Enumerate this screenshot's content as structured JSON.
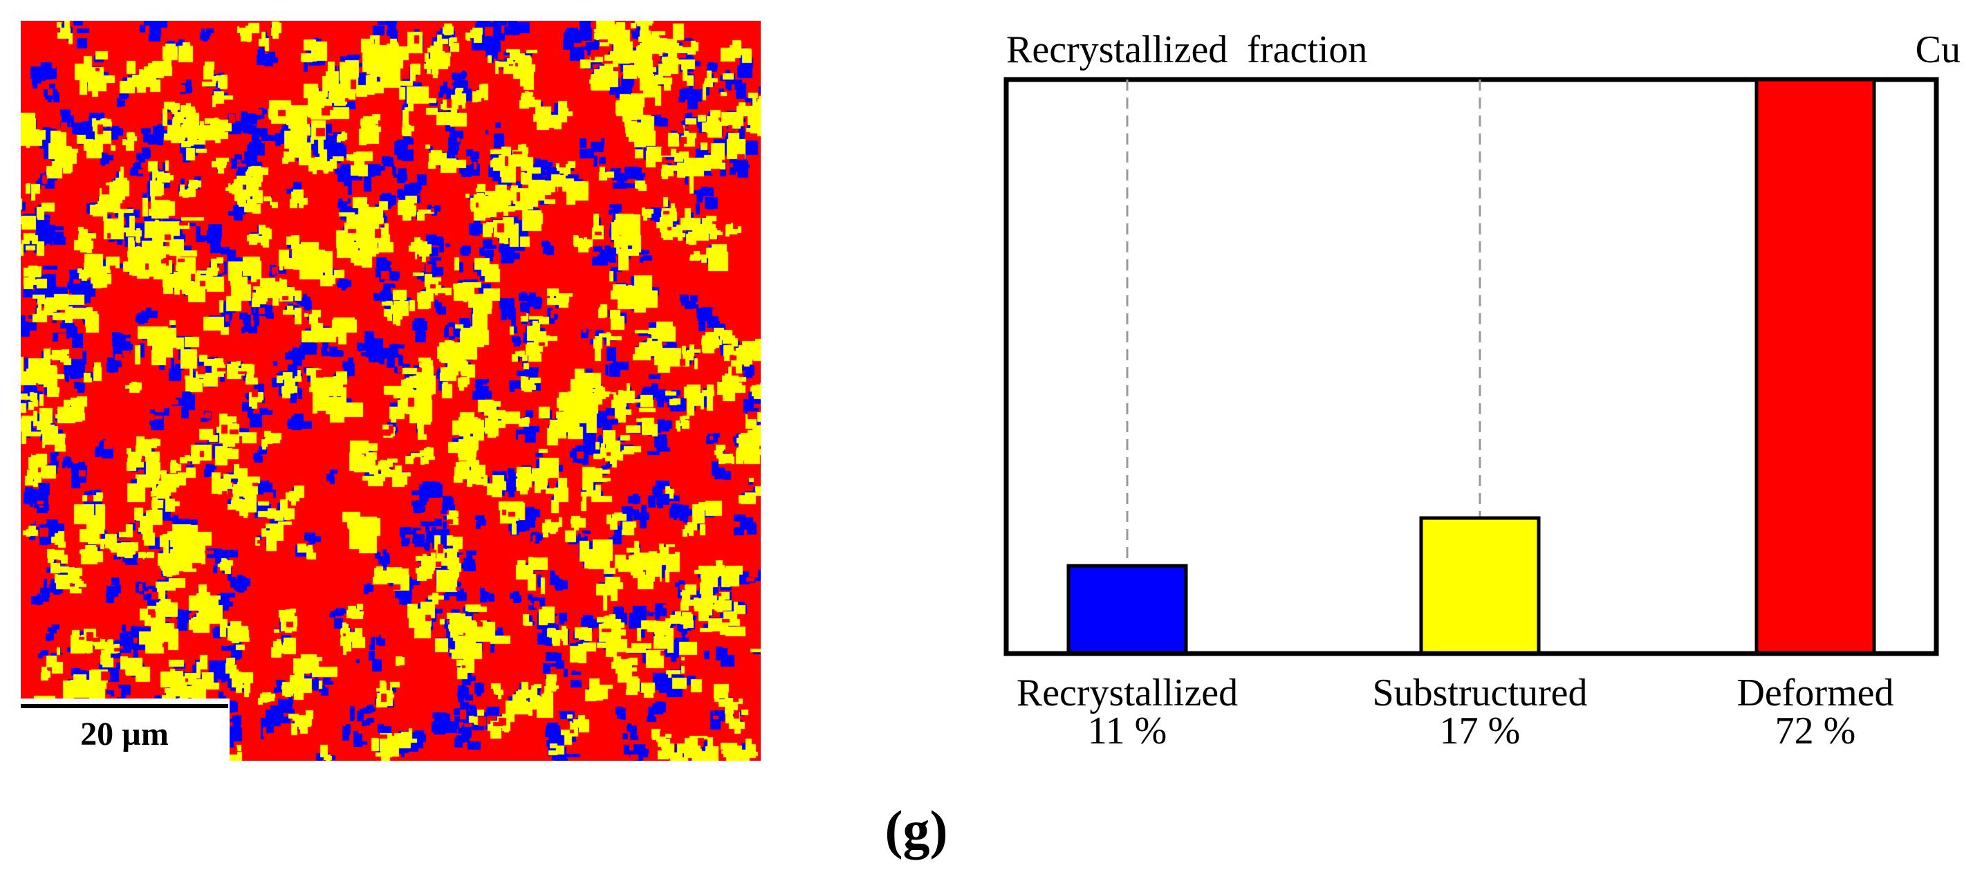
{
  "figure": {
    "panel_label": "(g)"
  },
  "ebsd_map": {
    "scale_label": "20 µm",
    "colors": {
      "recrystallized": "#0000ff",
      "substructured": "#ffff00",
      "deformed": "#ff0000"
    }
  },
  "chart_data": {
    "type": "bar",
    "title": "Recrystallized  fraction",
    "material_label": "Cu",
    "categories": [
      "Recrystallized",
      "Substructured",
      "Deformed"
    ],
    "values": [
      11,
      17,
      72
    ],
    "value_labels": [
      "11 %",
      "17 %",
      "72 %"
    ],
    "colors": [
      "#0000ff",
      "#ffff00",
      "#ff0000"
    ],
    "ylim": [
      0,
      72
    ],
    "guide_lines": "dashed",
    "xlabel": "",
    "ylabel": ""
  }
}
